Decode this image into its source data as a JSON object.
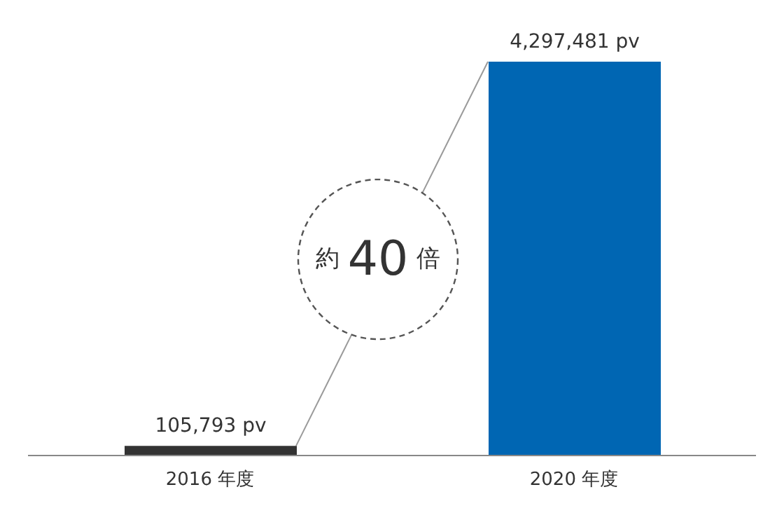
{
  "chart_data": {
    "type": "bar",
    "categories": [
      "2016 年度",
      "2020 年度"
    ],
    "values": [
      105793,
      4297481
    ],
    "colors": [
      "#333333",
      "#0066b3"
    ],
    "value_labels": [
      "105,793 pv",
      "4,297,481 pv"
    ],
    "annotations": [
      "約 40 倍"
    ]
  }
}
